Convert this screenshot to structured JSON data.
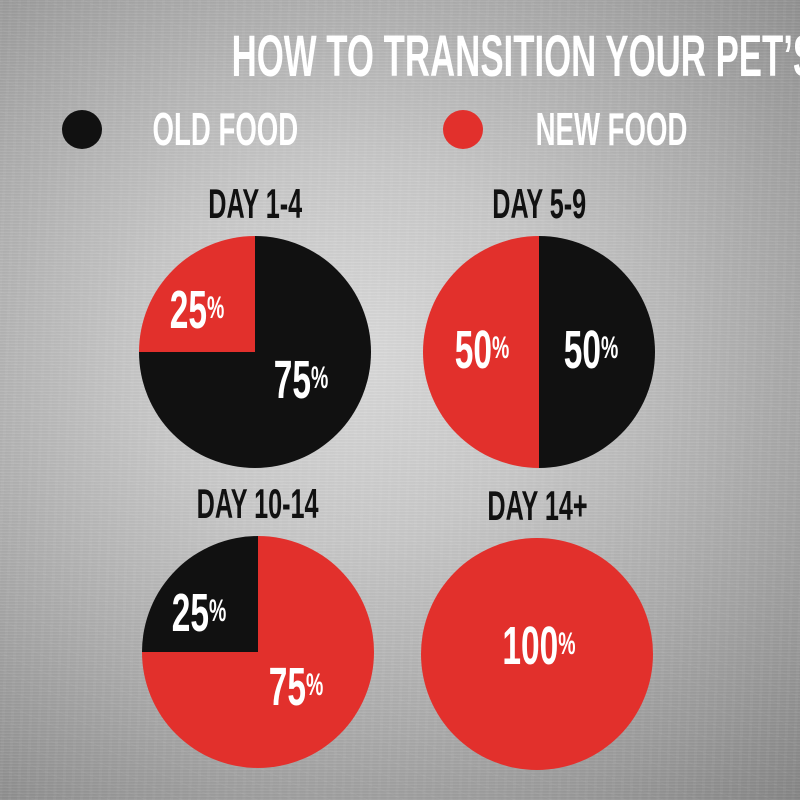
{
  "title": "HOW TO TRANSITION YOUR PET’S FOOD",
  "colors": {
    "old_food": "#111111",
    "new_food": "#e2302c",
    "label_text": "#ffffff",
    "chart_title_text": "#111111",
    "background_metal_light": "#dadada",
    "background_metal_dark": "#7b7b7b"
  },
  "legend": {
    "items": [
      {
        "label": "OLD FOOD",
        "color": "#111111"
      },
      {
        "label": "NEW FOOD",
        "color": "#e2302c"
      }
    ]
  },
  "chart_data": [
    {
      "type": "pie",
      "title": "DAY 1-4",
      "slices": [
        {
          "name": "OLD FOOD",
          "value": 75,
          "color": "#111111",
          "from_deg": 0,
          "to_deg": 270
        },
        {
          "name": "NEW FOOD",
          "value": 25,
          "color": "#e2302c",
          "from_deg": 270,
          "to_deg": 360
        }
      ],
      "labels": [
        {
          "slice": "NEW FOOD",
          "value": "25",
          "unit": "%"
        },
        {
          "slice": "OLD FOOD",
          "value": "75",
          "unit": "%"
        }
      ]
    },
    {
      "type": "pie",
      "title": "DAY 5-9",
      "slices": [
        {
          "name": "OLD FOOD",
          "value": 50,
          "color": "#111111",
          "from_deg": 0,
          "to_deg": 180
        },
        {
          "name": "NEW FOOD",
          "value": 50,
          "color": "#e2302c",
          "from_deg": 180,
          "to_deg": 360
        }
      ],
      "labels": [
        {
          "slice": "NEW FOOD",
          "value": "50",
          "unit": "%"
        },
        {
          "slice": "OLD FOOD",
          "value": "50",
          "unit": "%"
        }
      ]
    },
    {
      "type": "pie",
      "title": "DAY 10-14",
      "slices": [
        {
          "name": "NEW FOOD",
          "value": 75,
          "color": "#e2302c",
          "from_deg": 0,
          "to_deg": 270
        },
        {
          "name": "OLD FOOD",
          "value": 25,
          "color": "#111111",
          "from_deg": 270,
          "to_deg": 360
        }
      ],
      "labels": [
        {
          "slice": "OLD FOOD",
          "value": "25",
          "unit": "%"
        },
        {
          "slice": "NEW FOOD",
          "value": "75",
          "unit": "%"
        }
      ]
    },
    {
      "type": "pie",
      "title": "DAY 14+",
      "slices": [
        {
          "name": "NEW FOOD",
          "value": 100,
          "color": "#e2302c",
          "from_deg": 0,
          "to_deg": 360
        }
      ],
      "labels": [
        {
          "slice": "NEW FOOD",
          "value": "100",
          "unit": "%"
        }
      ]
    }
  ]
}
